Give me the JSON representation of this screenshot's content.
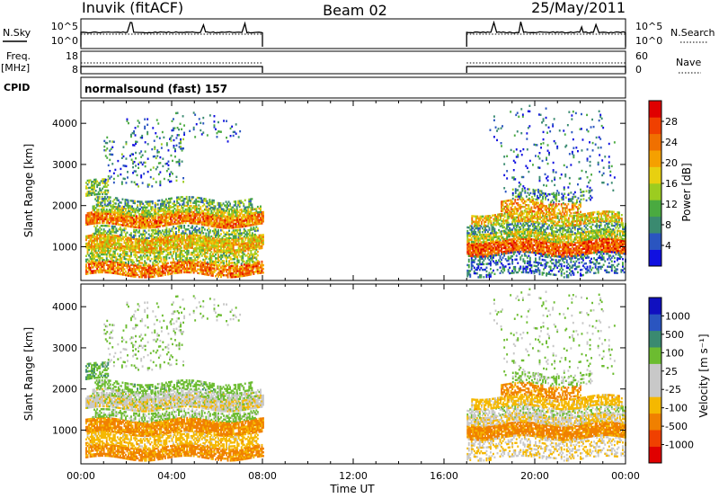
{
  "header": {
    "station": "Inuvik (fitACF)",
    "beam": "Beam 02",
    "date": "25/May/2011"
  },
  "strip_labels": {
    "nsky": "N.Sky",
    "nsearch": "N.Search",
    "freq": "Freq.",
    "mhz": "[MHz]",
    "cpid": "CPID",
    "nave": "Nave"
  },
  "strip_ticks": {
    "noise_left_top": "10^5",
    "noise_left_bottom": "10^0",
    "noise_right_top": "10^5",
    "noise_right_bottom": "10^0",
    "freq_left_top": "18",
    "freq_left_bottom": "8",
    "nave_right_top": "60",
    "nave_right_bottom": "0"
  },
  "cpid_text": "normalsound (fast) 157",
  "colors": {
    "power_scale": [
      "#1010e0",
      "#2a55c0",
      "#3a8a70",
      "#4aaa40",
      "#9ccc20",
      "#e8d010",
      "#f5a000",
      "#f07000",
      "#f04000",
      "#e00000"
    ],
    "velocity_scale": [
      "#e00000",
      "#f04000",
      "#f08000",
      "#f5b800",
      "#c8c8c8",
      "#c8c8c8",
      "#6cbc30",
      "#3a8a70",
      "#2a55c0",
      "#1010c0"
    ]
  },
  "chart_data": [
    {
      "type": "heatmap",
      "title": "",
      "ylabel": "Slant Range [km]",
      "xlabel": "",
      "y_ticks": [
        "1000",
        "2000",
        "3000",
        "4000"
      ],
      "ylim": [
        180,
        4550
      ],
      "xlim_hours": [
        0,
        24
      ],
      "colorbar_label": "Power [dB]",
      "colorbar_ticks": [
        "4",
        "8",
        "12",
        "16",
        "20",
        "24",
        "28"
      ],
      "colorbar_range": [
        0,
        30
      ],
      "data_gap_hours": [
        8.0,
        17.0
      ]
    },
    {
      "type": "heatmap",
      "title": "",
      "ylabel": "Slant Range [km]",
      "xlabel": "Time UT",
      "y_ticks": [
        "1000",
        "2000",
        "3000",
        "4000"
      ],
      "x_ticks": [
        "00:00",
        "04:00",
        "08:00",
        "12:00",
        "16:00",
        "20:00",
        "00:00"
      ],
      "ylim": [
        180,
        4550
      ],
      "xlim_hours": [
        0,
        24
      ],
      "colorbar_label": "Velocity [m s⁻¹]",
      "colorbar_ticks": [
        "1000",
        "500",
        "100",
        "25",
        "-25",
        "-100",
        "-500",
        "-1000"
      ],
      "data_gap_hours": [
        8.0,
        17.0
      ]
    }
  ]
}
